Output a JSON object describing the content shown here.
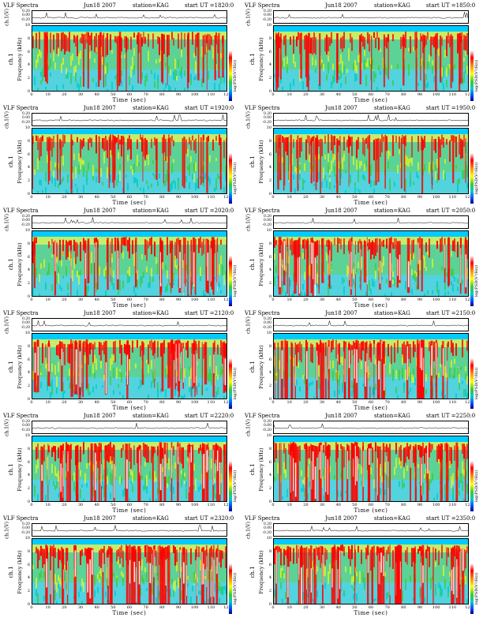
{
  "figure": {
    "panels": [
      {
        "title": "VLF Spectra",
        "date": "Jun18 2007",
        "station": "station=KAG",
        "start": "start  UT  =1820:0"
      },
      {
        "title": "VLF Spectra",
        "date": "Jun18 2007",
        "station": "station=KAG",
        "start": "start  UT  =1850:0"
      },
      {
        "title": "VLF Spectra",
        "date": "Jun18 2007",
        "station": "station=KAG",
        "start": "start  UT  =1920:0"
      },
      {
        "title": "VLF Spectra",
        "date": "Jun18 2007",
        "station": "station=KAG",
        "start": "start  UT  =1950:0"
      },
      {
        "title": "VLF Spectra",
        "date": "Jun18 2007",
        "station": "station=KAG",
        "start": "start  UT  =2020:0"
      },
      {
        "title": "VLF Spectra",
        "date": "Jun18 2007",
        "station": "station=KAG",
        "start": "start  UT  =2050:0"
      },
      {
        "title": "VLF Spectra",
        "date": "Jun18 2007",
        "station": "station=KAG",
        "start": "start  UT  =2120:0"
      },
      {
        "title": "VLF Spectra",
        "date": "Jun18 2007",
        "station": "station=KAG",
        "start": "start  UT  =2150:0"
      },
      {
        "title": "VLF Spectra",
        "date": "Jun18 2007",
        "station": "station=KAG",
        "start": "start  UT  =2220:0"
      },
      {
        "title": "VLF Spectra",
        "date": "Jun18 2007",
        "station": "station=KAG",
        "start": "start  UT  =2250:0"
      },
      {
        "title": "VLF Spectra",
        "date": "Jun18 2007",
        "station": "station=KAG",
        "start": "start  UT  =2320:0"
      },
      {
        "title": "VLF Spectra",
        "date": "Jun18 2007",
        "station": "station=KAG",
        "start": "start  UT  =2350:0"
      }
    ],
    "ts_ylabel": "ch.1(V)",
    "ts_ticks": [
      "0.20",
      "0.00",
      "-0.20"
    ],
    "spec_ylabel_line1": "ch.1",
    "spec_ylabel_line2": "Frequency  (kHz)",
    "freq_ticks": [
      "10",
      "8",
      "6",
      "4",
      "2",
      "0"
    ],
    "time_ticks": [
      "0",
      "10",
      "20",
      "30",
      "40",
      "50",
      "60",
      "70",
      "80",
      "90",
      "100",
      "110",
      "120"
    ],
    "xlabel": "Time  (sec)",
    "colorbar_label": "log(PSD(V²/Hz))"
  },
  "colors": {
    "background": "#7fd8e8",
    "low": "#00cccc",
    "mid": "#33cc33",
    "upper": "#ffff00",
    "high": "#ff0000",
    "saturated": "#ffffff",
    "cutoff_band": "#00ccff"
  },
  "chart_data": {
    "type": "heatmap",
    "title": "VLF Spectra",
    "subplots": [
      {
        "start": "start  UT  =1820:0",
        "intensity_level": 1
      },
      {
        "start": "start  UT  =1850:0",
        "intensity_level": 1
      },
      {
        "start": "start  UT  =1920:0",
        "intensity_level": 1
      },
      {
        "start": "start  UT  =1950:0",
        "intensity_level": 1
      },
      {
        "start": "start  UT  =2020:0",
        "intensity_level": 2
      },
      {
        "start": "start  UT  =2050:0",
        "intensity_level": 2
      },
      {
        "start": "start  UT  =2120:0",
        "intensity_level": 2
      },
      {
        "start": "start  UT  =2150:0",
        "intensity_level": 3
      },
      {
        "start": "start  UT  =2220:0",
        "intensity_level": 3
      },
      {
        "start": "start  UT  =2250:0",
        "intensity_level": 3
      },
      {
        "start": "start  UT  =2320:0",
        "intensity_level": 3
      },
      {
        "start": "start  UT  =2350:0",
        "intensity_level": 3
      }
    ],
    "xlabel": "Time  (sec)",
    "ylabel": "Frequency  (kHz)",
    "xlim": [
      0,
      120
    ],
    "ylim": [
      0,
      10
    ],
    "ts_ylabel": "ch.1(V)",
    "ts_ylim": [
      -0.2,
      0.2
    ],
    "colorbar_label": "log(PSD(V²/Hz))",
    "colormap": [
      "#000080",
      "#0044ff",
      "#00cccc",
      "#33cc33",
      "#ffff00",
      "#ff8800",
      "#ff0000",
      "#ffffff"
    ]
  }
}
